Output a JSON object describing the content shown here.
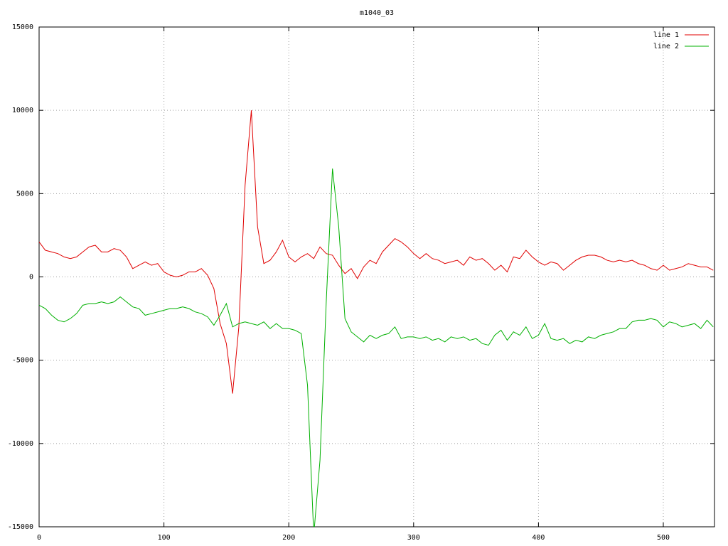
{
  "chart_data": {
    "type": "line",
    "title": "m1040_03",
    "x": [
      0,
      5,
      10,
      15,
      20,
      25,
      30,
      35,
      40,
      45,
      50,
      55,
      60,
      65,
      70,
      75,
      80,
      85,
      90,
      95,
      100,
      105,
      110,
      115,
      120,
      125,
      130,
      135,
      140,
      145,
      150,
      155,
      160,
      165,
      170,
      175,
      180,
      185,
      190,
      195,
      200,
      205,
      210,
      215,
      220,
      225,
      230,
      235,
      240,
      245,
      250,
      255,
      260,
      265,
      270,
      275,
      280,
      285,
      290,
      295,
      300,
      305,
      310,
      315,
      320,
      325,
      330,
      335,
      340,
      345,
      350,
      355,
      360,
      365,
      370,
      375,
      380,
      385,
      390,
      395,
      400,
      405,
      410,
      415,
      420,
      425,
      430,
      435,
      440,
      445,
      450,
      455,
      460,
      465,
      470,
      475,
      480,
      485,
      490,
      495,
      500,
      505,
      510,
      515,
      520,
      525,
      530,
      535,
      540
    ],
    "series": [
      {
        "name": "line 1",
        "color": "#e00000",
        "values": [
          2100,
          1600,
          1500,
          1400,
          1200,
          1100,
          1200,
          1500,
          1800,
          1900,
          1500,
          1500,
          1700,
          1600,
          1200,
          500,
          700,
          900,
          700,
          800,
          300,
          100,
          0,
          100,
          300,
          300,
          500,
          100,
          -700,
          -2800,
          -4000,
          -7000,
          -3000,
          5500,
          10000,
          3000,
          800,
          1000,
          1500,
          2200,
          1200,
          900,
          1200,
          1400,
          1100,
          1800,
          1400,
          1300,
          700,
          200,
          500,
          -100,
          600,
          1000,
          800,
          1500,
          1900,
          2300,
          2100,
          1800,
          1400,
          1100,
          1400,
          1100,
          1000,
          800,
          900,
          1000,
          700,
          1200,
          1000,
          1100,
          800,
          400,
          700,
          300,
          1200,
          1100,
          1600,
          1200,
          900,
          700,
          900,
          800,
          400,
          700,
          1000,
          1200,
          1300,
          1300,
          1200,
          1000,
          900,
          1000,
          900,
          1000,
          800,
          700,
          500,
          400,
          700,
          400,
          500,
          600,
          800,
          700,
          600,
          600,
          400
        ]
      },
      {
        "name": "line 2",
        "color": "#00b000",
        "values": [
          -1700,
          -1900,
          -2300,
          -2600,
          -2700,
          -2500,
          -2200,
          -1700,
          -1600,
          -1600,
          -1500,
          -1600,
          -1500,
          -1200,
          -1500,
          -1800,
          -1900,
          -2300,
          -2200,
          -2100,
          -2000,
          -1900,
          -1900,
          -1800,
          -1900,
          -2100,
          -2200,
          -2400,
          -2900,
          -2300,
          -1600,
          -3000,
          -2800,
          -2700,
          -2800,
          -2900,
          -2700,
          -3100,
          -2800,
          -3100,
          -3100,
          -3200,
          -3400,
          -6500,
          -15500,
          -11000,
          -1500,
          6500,
          3000,
          -2500,
          -3300,
          -3600,
          -3900,
          -3500,
          -3700,
          -3500,
          -3400,
          -3000,
          -3700,
          -3600,
          -3600,
          -3700,
          -3600,
          -3800,
          -3700,
          -3900,
          -3600,
          -3700,
          -3600,
          -3800,
          -3700,
          -4000,
          -4100,
          -3500,
          -3200,
          -3800,
          -3300,
          -3500,
          -3000,
          -3700,
          -3500,
          -2800,
          -3700,
          -3800,
          -3700,
          -4000,
          -3800,
          -3900,
          -3600,
          -3700,
          -3500,
          -3400,
          -3300,
          -3100,
          -3100,
          -2700,
          -2600,
          -2600,
          -2500,
          -2600,
          -3000,
          -2700,
          -2800,
          -3000,
          -2900,
          -2800,
          -3100,
          -2600,
          -3000
        ]
      }
    ],
    "xlim": [
      0,
      541
    ],
    "xticks": [
      0,
      100,
      200,
      300,
      400,
      500
    ],
    "ylim": [
      -15000,
      15000
    ],
    "yticks": [
      -15000,
      -10000,
      -5000,
      0,
      5000,
      10000,
      15000
    ],
    "grid": true,
    "legend": "top-right"
  }
}
